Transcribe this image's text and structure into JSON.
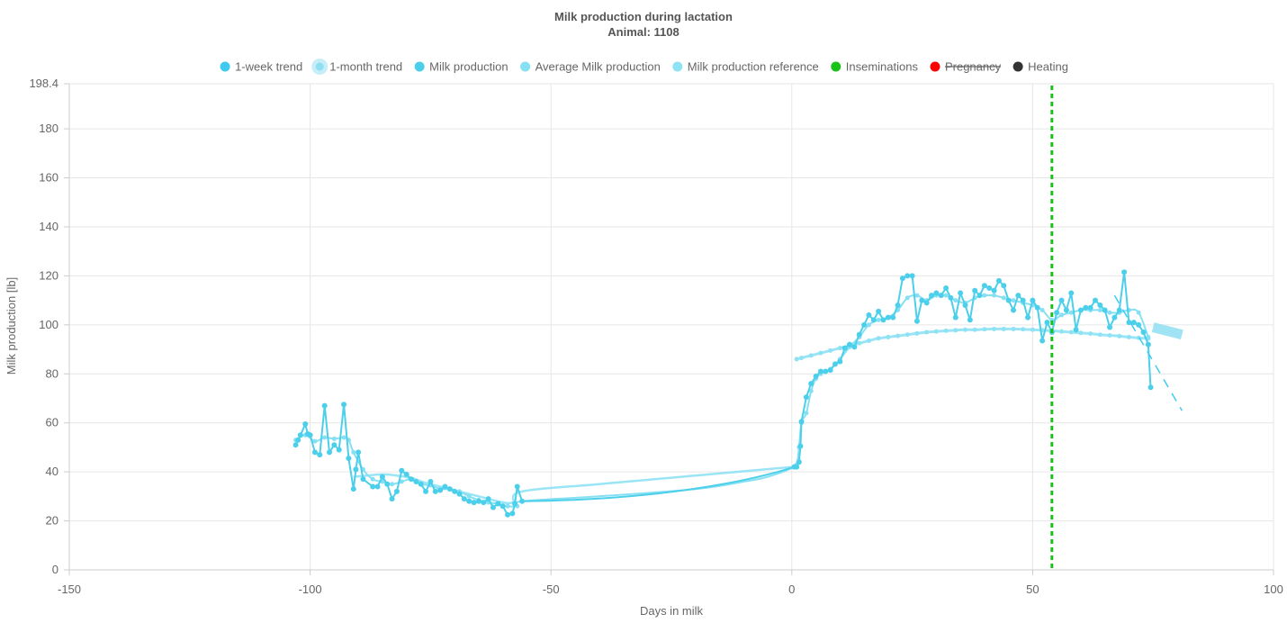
{
  "chart_data": {
    "type": "line",
    "title": "Milk production during lactation",
    "subtitle": "Animal: 1108",
    "xlabel": "Days in milk",
    "ylabel": "Milk production [lb]",
    "xlim": [
      -150,
      100
    ],
    "ylim": [
      0,
      198.4
    ],
    "x_ticks": [
      "-150",
      "-100",
      "-50",
      "0",
      "50",
      "100"
    ],
    "y_ticks": [
      "0",
      "20",
      "40",
      "60",
      "80",
      "100",
      "120",
      "140",
      "160",
      "180",
      "198.4"
    ],
    "grid": true,
    "legend_position": "top",
    "legend": [
      {
        "key": "week",
        "label": "1-week trend",
        "color": "#3fcbef",
        "hidden": false
      },
      {
        "key": "month",
        "label": "1-month trend",
        "color": "#8fdef2",
        "hidden": false
      },
      {
        "key": "prod",
        "label": "Milk production",
        "color": "#4ccfea",
        "hidden": false
      },
      {
        "key": "avg",
        "label": "Average Milk production",
        "color": "#86e0f3",
        "hidden": false
      },
      {
        "key": "ref",
        "label": "Milk production reference",
        "color": "#8fe2f4",
        "hidden": false
      },
      {
        "key": "insem",
        "label": "Inseminations",
        "color": "#19c219",
        "hidden": false
      },
      {
        "key": "preg",
        "label": "Pregnancy",
        "color": "#ff0000",
        "hidden": true
      },
      {
        "key": "heat",
        "label": "Heating",
        "color": "#333333",
        "hidden": false
      }
    ],
    "colors": {
      "production": "#4ccfea",
      "average": "#86e0f3",
      "reference": "#8fe2f4",
      "week_trend": "#3fcbef",
      "month_trend": "#8fdef2",
      "insemination": "#19c219",
      "grid": "#e6e6e6",
      "axis": "#cccccc"
    },
    "series": [
      {
        "name": "Milk production",
        "key": "prod",
        "points": [
          [
            -103,
            51
          ],
          [
            -102.5,
            53
          ],
          [
            -102,
            55
          ],
          [
            -101,
            59.5
          ],
          [
            -100.5,
            55.5
          ],
          [
            -100,
            55
          ],
          [
            -99,
            48
          ],
          [
            -98,
            47
          ],
          [
            -97,
            67
          ],
          [
            -96,
            48
          ],
          [
            -95,
            51
          ],
          [
            -94,
            49
          ],
          [
            -93,
            67.5
          ],
          [
            -92,
            45.5
          ],
          [
            -91,
            33
          ],
          [
            -90.5,
            41
          ],
          [
            -90,
            48
          ],
          [
            -89,
            37
          ],
          [
            -87,
            34
          ],
          [
            -86,
            34
          ],
          [
            -85,
            38
          ],
          [
            -84,
            35
          ],
          [
            -83,
            29
          ],
          [
            -82,
            32
          ],
          [
            -81,
            40.5
          ],
          [
            -80,
            39
          ],
          [
            -79,
            37
          ],
          [
            -78,
            36
          ],
          [
            -77,
            35
          ],
          [
            -76,
            32
          ],
          [
            -75,
            36
          ],
          [
            -74,
            32
          ],
          [
            -73,
            32.5
          ],
          [
            -72,
            34
          ],
          [
            -71,
            33
          ],
          [
            -70,
            32
          ],
          [
            -69,
            31
          ],
          [
            -68,
            29
          ],
          [
            -67,
            28
          ],
          [
            -66,
            27.5
          ],
          [
            -65,
            28
          ],
          [
            -64,
            27.5
          ],
          [
            -63,
            29
          ],
          [
            -62,
            25.5
          ],
          [
            -61,
            27
          ],
          [
            -60,
            26
          ],
          [
            -59,
            22.5
          ],
          [
            -58,
            23
          ],
          [
            -57.5,
            27
          ],
          [
            -57,
            34
          ],
          [
            -56,
            28
          ],
          [
            0.5,
            42
          ],
          [
            1,
            42
          ],
          [
            1.5,
            44
          ],
          [
            1.8,
            50.5
          ],
          [
            2,
            60.5
          ],
          [
            3,
            70.5
          ],
          [
            4,
            76
          ],
          [
            5,
            79
          ],
          [
            6,
            81
          ],
          [
            7,
            81
          ],
          [
            8,
            81.5
          ],
          [
            9,
            84
          ],
          [
            10,
            85
          ],
          [
            11,
            90.5
          ],
          [
            12,
            92
          ],
          [
            13,
            91
          ],
          [
            14,
            96
          ],
          [
            15,
            100
          ],
          [
            16,
            104
          ],
          [
            17,
            102
          ],
          [
            18,
            105.5
          ],
          [
            19,
            102
          ],
          [
            20,
            103
          ],
          [
            21,
            103
          ],
          [
            22,
            108
          ],
          [
            23,
            119
          ],
          [
            24,
            120
          ],
          [
            25,
            120
          ],
          [
            26,
            101.5
          ],
          [
            27,
            110
          ],
          [
            28,
            109
          ],
          [
            29,
            112
          ],
          [
            30,
            113
          ],
          [
            31,
            112
          ],
          [
            32,
            115
          ],
          [
            33,
            111
          ],
          [
            34,
            103
          ],
          [
            35,
            113
          ],
          [
            36,
            108
          ],
          [
            37,
            102
          ],
          [
            38,
            114
          ],
          [
            39,
            112
          ],
          [
            40,
            116
          ],
          [
            41,
            115
          ],
          [
            42,
            114
          ],
          [
            43,
            118
          ],
          [
            44,
            116
          ],
          [
            45,
            110
          ],
          [
            46,
            106
          ],
          [
            47,
            112
          ],
          [
            48,
            110
          ],
          [
            49,
            103
          ],
          [
            50,
            110
          ],
          [
            51,
            107
          ],
          [
            52,
            93.5
          ],
          [
            53,
            101
          ],
          [
            54,
            97
          ],
          [
            55,
            105
          ],
          [
            56,
            110
          ],
          [
            57,
            106
          ],
          [
            58,
            113
          ],
          [
            59,
            98
          ],
          [
            60,
            106
          ],
          [
            61,
            107
          ],
          [
            62,
            107
          ],
          [
            63,
            110
          ],
          [
            64,
            108
          ],
          [
            65,
            106
          ],
          [
            66,
            99
          ],
          [
            67,
            103
          ],
          [
            68,
            106
          ],
          [
            69,
            121.5
          ],
          [
            70,
            101
          ],
          [
            71,
            101
          ],
          [
            72,
            100
          ],
          [
            73,
            97
          ],
          [
            74,
            92
          ],
          [
            74.5,
            74.5
          ]
        ]
      },
      {
        "name": "Average Milk production",
        "key": "avg",
        "points": [
          [
            -103,
            53
          ],
          [
            -101,
            55
          ],
          [
            -99,
            52.5
          ],
          [
            -97,
            54
          ],
          [
            -95,
            53.5
          ],
          [
            -93,
            54
          ],
          [
            -92,
            53
          ],
          [
            -91,
            48
          ],
          [
            -89,
            41
          ],
          [
            -87,
            37
          ],
          [
            -85,
            36
          ],
          [
            -83,
            35
          ],
          [
            -81,
            36
          ],
          [
            -79,
            37
          ],
          [
            -77,
            35
          ],
          [
            -75,
            34.5
          ],
          [
            -73,
            33
          ],
          [
            -71,
            33
          ],
          [
            -69,
            32
          ],
          [
            -67,
            30
          ],
          [
            -65,
            28.5
          ],
          [
            -63,
            27.5
          ],
          [
            -61,
            27
          ],
          [
            -59,
            26
          ],
          [
            -57,
            26
          ],
          [
            -56,
            28
          ],
          [
            -40,
            30
          ],
          [
            -20,
            33
          ],
          [
            -10,
            36
          ],
          [
            -5,
            38
          ],
          [
            0,
            41.5
          ],
          [
            1,
            43
          ],
          [
            1.5,
            50
          ],
          [
            2,
            60
          ],
          [
            3,
            64
          ],
          [
            4,
            73
          ],
          [
            5,
            78
          ],
          [
            6,
            80
          ],
          [
            8,
            82
          ],
          [
            10,
            86
          ],
          [
            12,
            91
          ],
          [
            14,
            95
          ],
          [
            16,
            100
          ],
          [
            18,
            102
          ],
          [
            20,
            103
          ],
          [
            22,
            106
          ],
          [
            24,
            111
          ],
          [
            26,
            112
          ],
          [
            28,
            110
          ],
          [
            30,
            112
          ],
          [
            32,
            112
          ],
          [
            34,
            110
          ],
          [
            36,
            109
          ],
          [
            38,
            111
          ],
          [
            40,
            112
          ],
          [
            42,
            112
          ],
          [
            44,
            111
          ],
          [
            46,
            110
          ],
          [
            48,
            109
          ],
          [
            50,
            108
          ],
          [
            52,
            106
          ],
          [
            54,
            102
          ],
          [
            56,
            104
          ],
          [
            58,
            105
          ],
          [
            60,
            106
          ],
          [
            62,
            106
          ],
          [
            64,
            106
          ],
          [
            66,
            105
          ],
          [
            68,
            105
          ],
          [
            70,
            106
          ],
          [
            72,
            105
          ],
          [
            74,
            95
          ]
        ]
      },
      {
        "name": "Milk production reference",
        "key": "ref",
        "points": [
          [
            -91,
            38
          ],
          [
            -88,
            38.5
          ],
          [
            -85,
            39
          ],
          [
            -82,
            38.5
          ],
          [
            -79,
            37.5
          ],
          [
            -76,
            35.5
          ],
          [
            -73,
            34
          ],
          [
            -70,
            32.5
          ],
          [
            -67,
            31
          ],
          [
            -64,
            29.5
          ],
          [
            -61,
            28
          ],
          [
            -58,
            27.5
          ],
          [
            -56,
            32
          ],
          [
            -40,
            35
          ],
          [
            -20,
            38.5
          ],
          [
            0,
            42
          ],
          [
            1,
            86
          ],
          [
            2,
            86.5
          ],
          [
            4,
            87.5
          ],
          [
            6,
            88.5
          ],
          [
            8,
            89.5
          ],
          [
            10,
            90.5
          ],
          [
            12,
            91.5
          ],
          [
            14,
            92.5
          ],
          [
            16,
            93.5
          ],
          [
            18,
            94.5
          ],
          [
            20,
            95
          ],
          [
            22,
            95.5
          ],
          [
            24,
            96
          ],
          [
            26,
            96.5
          ],
          [
            28,
            97
          ],
          [
            30,
            97.3
          ],
          [
            32,
            97.6
          ],
          [
            34,
            97.8
          ],
          [
            36,
            98
          ],
          [
            38,
            98
          ],
          [
            40,
            98.2
          ],
          [
            42,
            98.3
          ],
          [
            44,
            98.3
          ],
          [
            46,
            98.3
          ],
          [
            48,
            98.2
          ],
          [
            50,
            98
          ],
          [
            52,
            97.8
          ],
          [
            54,
            97.6
          ],
          [
            56,
            97.3
          ],
          [
            58,
            97
          ],
          [
            60,
            96.7
          ],
          [
            62,
            96.4
          ],
          [
            64,
            96
          ],
          [
            66,
            95.7
          ],
          [
            68,
            95.4
          ],
          [
            70,
            95
          ],
          [
            72,
            94.7
          ],
          [
            74,
            94.4
          ]
        ]
      },
      {
        "name": "1-week trend",
        "key": "week",
        "points": [
          [
            67,
            112
          ],
          [
            81,
            65
          ]
        ]
      },
      {
        "name": "1-month trend",
        "key": "month",
        "points": [
          [
            75,
            99
          ],
          [
            81,
            96
          ]
        ]
      }
    ],
    "inseminations": [
      54
    ]
  }
}
